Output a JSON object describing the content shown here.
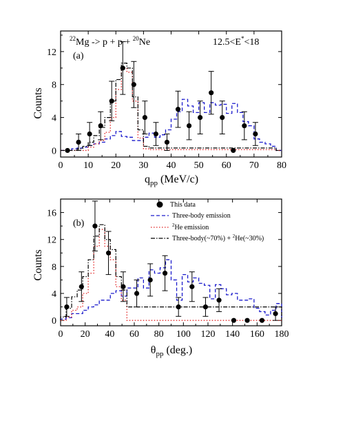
{
  "chart_data": [
    {
      "type": "scatter",
      "panel_label": "(a)",
      "reaction_text": {
        "pre1": "22",
        "t1": "Mg -> p + p + ",
        "pre2": "20",
        "t2": "Ne"
      },
      "energy_text": {
        "t1": "12.5<E",
        "sup": "*",
        "t2": "<18"
      },
      "xlabel": {
        "main": "q",
        "sub": "pp",
        "rest": " (MeV/c)"
      },
      "ylabel": "Counts",
      "xlim": [
        0,
        80
      ],
      "ylim": [
        -0.8,
        14.5
      ],
      "xticks": [
        0,
        10,
        20,
        30,
        40,
        50,
        60,
        70,
        80
      ],
      "yticks": [
        0,
        4,
        8,
        12
      ],
      "points": [
        {
          "x": 2.5,
          "y": 0,
          "err": 0
        },
        {
          "x": 6.5,
          "y": 1,
          "err": 1
        },
        {
          "x": 10.5,
          "y": 2,
          "err": 1.4
        },
        {
          "x": 14.5,
          "y": 3,
          "err": 1.7
        },
        {
          "x": 18.5,
          "y": 6,
          "err": 2.4
        },
        {
          "x": 22.5,
          "y": 10,
          "err": 3.2
        },
        {
          "x": 26.5,
          "y": 8,
          "err": 2.8
        },
        {
          "x": 30.5,
          "y": 4,
          "err": 2.0
        },
        {
          "x": 34.5,
          "y": 2,
          "err": 1.4
        },
        {
          "x": 38.5,
          "y": 1,
          "err": 1
        },
        {
          "x": 42.5,
          "y": 5,
          "err": 2.2
        },
        {
          "x": 46.5,
          "y": 3,
          "err": 1.7
        },
        {
          "x": 50.5,
          "y": 4,
          "err": 2.0
        },
        {
          "x": 54.5,
          "y": 7,
          "err": 2.6
        },
        {
          "x": 58.5,
          "y": 4,
          "err": 2.0
        },
        {
          "x": 62.5,
          "y": 0,
          "err": 0
        },
        {
          "x": 66.5,
          "y": 3,
          "err": 1.7
        },
        {
          "x": 70.5,
          "y": 2,
          "err": 1.4
        }
      ],
      "series": [
        {
          "style": "blue-dash",
          "bin_edges": [
            0,
            2,
            4,
            6,
            8,
            10,
            12,
            14,
            16,
            18,
            20,
            22,
            24,
            26,
            28,
            30,
            32,
            34,
            36,
            38,
            40,
            42,
            44,
            46,
            48,
            50,
            52,
            54,
            56,
            58,
            60,
            62,
            64,
            66,
            68,
            70,
            72,
            74,
            76,
            78,
            80
          ],
          "values": [
            0,
            0,
            0.2,
            0.3,
            0.4,
            0.6,
            0.8,
            1,
            1.4,
            1.8,
            2.3,
            1.7,
            1.6,
            1.2,
            1.2,
            1.6,
            2.1,
            1.6,
            1.9,
            2.5,
            3.8,
            4.7,
            6.2,
            5.4,
            4.6,
            5.8,
            4.6,
            5.8,
            5.5,
            5.6,
            4.5,
            5.7,
            4.6,
            3.5,
            3,
            1.4,
            1,
            0.8,
            0.5,
            0
          ]
        },
        {
          "style": "red-dot",
          "bin_edges": [
            0,
            2,
            4,
            6,
            8,
            10,
            12,
            14,
            16,
            18,
            20,
            22,
            24,
            26,
            28,
            30,
            32,
            34,
            36,
            38,
            40,
            42,
            44,
            46,
            48,
            50,
            52,
            54,
            56,
            58,
            60,
            62,
            64,
            66,
            68,
            70,
            72,
            74,
            76,
            78,
            80
          ],
          "values": [
            0,
            0,
            0,
            0,
            0,
            0.4,
            0.8,
            1.2,
            2.2,
            4,
            7.4,
            10,
            9.5,
            6,
            1.5,
            0.2,
            0.1,
            0.1,
            0.1,
            0.1,
            0.1,
            0.1,
            0.1,
            0.1,
            0.1,
            0.1,
            0.1,
            0.1,
            0.1,
            0.1,
            0.1,
            0.1,
            0.1,
            0.1,
            0.1,
            0.1,
            0.1,
            0.1,
            0.1,
            0
          ]
        },
        {
          "style": "black-dashdot",
          "bin_edges": [
            0,
            2,
            4,
            6,
            8,
            10,
            12,
            14,
            16,
            18,
            20,
            22,
            24,
            26,
            28,
            30,
            32,
            34,
            36,
            38,
            40,
            42,
            44,
            46,
            48,
            50,
            52,
            54,
            56,
            58,
            60,
            62,
            64,
            66,
            68,
            70,
            72,
            74,
            76,
            78,
            80
          ],
          "values": [
            0,
            0,
            0,
            0.2,
            0.5,
            1,
            1.8,
            2.8,
            4,
            6,
            8.6,
            10.6,
            10,
            6.5,
            2.5,
            0.5,
            0.3,
            0.3,
            0.3,
            0.3,
            0.3,
            0.3,
            0.3,
            0.3,
            0.3,
            0.3,
            0.3,
            0.3,
            0.3,
            0.3,
            0.3,
            0.3,
            0.3,
            0.3,
            0.3,
            0.3,
            0.3,
            0.3,
            0.3,
            0
          ]
        }
      ]
    },
    {
      "type": "scatter",
      "panel_label": "(b)",
      "xlabel": {
        "main": "θ",
        "sub": "pp",
        "rest": " (deg.)"
      },
      "ylabel": "Counts",
      "xlim": [
        0,
        180
      ],
      "ylim": [
        -0.8,
        18.0
      ],
      "xticks": [
        0,
        20,
        40,
        60,
        80,
        100,
        120,
        140,
        160,
        180
      ],
      "yticks": [
        0,
        4,
        8,
        12,
        16
      ],
      "legend": {
        "position": "top-right",
        "entries": [
          {
            "text": "This data",
            "marker": "dot"
          },
          {
            "text": "Three-body emission",
            "marker": "blue-dash"
          },
          {
            "sup": "2",
            "text": "He emission",
            "marker": "red-dot"
          },
          {
            "text1": "Three-body(~70%) + ",
            "sup": "2",
            "text2": "He(~30%)",
            "marker": "black-dashdot"
          }
        ]
      },
      "points": [
        {
          "x": 5,
          "y": 2,
          "err": 1.4
        },
        {
          "x": 17,
          "y": 5,
          "err": 2.2
        },
        {
          "x": 28,
          "y": 14,
          "err": 3.7
        },
        {
          "x": 39,
          "y": 10,
          "err": 3.2
        },
        {
          "x": 51,
          "y": 5,
          "err": 2.2
        },
        {
          "x": 62,
          "y": 4,
          "err": 2.0
        },
        {
          "x": 73,
          "y": 6,
          "err": 2.4
        },
        {
          "x": 85,
          "y": 7,
          "err": 2.6
        },
        {
          "x": 96,
          "y": 2,
          "err": 1.4
        },
        {
          "x": 107,
          "y": 5,
          "err": 2.2
        },
        {
          "x": 118,
          "y": 2,
          "err": 1.4
        },
        {
          "x": 129,
          "y": 3,
          "err": 1.7
        },
        {
          "x": 141,
          "y": 0,
          "err": 0
        },
        {
          "x": 152,
          "y": 0,
          "err": 0
        },
        {
          "x": 164,
          "y": 0,
          "err": 0
        },
        {
          "x": 175,
          "y": 1,
          "err": 1
        }
      ],
      "series": [
        {
          "style": "blue-dash",
          "bin_edges": [
            0,
            4.5,
            9,
            13.5,
            18,
            22.5,
            27,
            31.5,
            36,
            40.5,
            45,
            49.5,
            54,
            58.5,
            63,
            67.5,
            72,
            76.5,
            81,
            85.5,
            90,
            94.5,
            99,
            103.5,
            108,
            112.5,
            117,
            121.5,
            126,
            130.5,
            135,
            139.5,
            144,
            148.5,
            153,
            157.5,
            162,
            166.5,
            171,
            175.5,
            180
          ],
          "values": [
            0.2,
            0.4,
            1,
            1,
            1.5,
            2,
            2.3,
            3,
            3,
            4,
            4.4,
            3.6,
            4.8,
            4.8,
            6.3,
            4.8,
            7.5,
            7,
            7.8,
            9,
            6,
            3,
            6.8,
            5.7,
            6.3,
            5.5,
            5.2,
            3.2,
            5.3,
            4.7,
            3.8,
            4,
            3,
            3,
            3.2,
            1.8,
            1.3,
            0.8,
            1.5,
            2.5
          ]
        },
        {
          "style": "red-dot",
          "bin_edges": [
            0,
            4.5,
            9,
            13.5,
            18,
            22.5,
            27,
            31.5,
            36,
            40.5,
            45,
            49.5,
            54,
            58.5,
            63,
            67.5,
            72,
            76.5,
            81,
            85.5,
            90,
            94.5,
            99,
            103.5,
            108,
            112.5,
            117,
            121.5,
            126,
            130.5,
            135,
            139.5,
            144,
            148.5,
            153,
            157.5,
            162,
            166.5,
            171,
            175.5,
            180
          ],
          "values": [
            0,
            0.5,
            1.5,
            2,
            4,
            7,
            11,
            13.5,
            11,
            9,
            5,
            3,
            0,
            0,
            0,
            0,
            0,
            0,
            0,
            0,
            0,
            0,
            0,
            0,
            0,
            0,
            0,
            0,
            0,
            0,
            0,
            0,
            0,
            0,
            0,
            0,
            0,
            0,
            0,
            0
          ]
        },
        {
          "style": "black-dashdot",
          "bin_edges": [
            0,
            4.5,
            9,
            13.5,
            18,
            22.5,
            27,
            31.5,
            36,
            40.5,
            45,
            49.5,
            54,
            58.5,
            63,
            67.5,
            72,
            76.5,
            81,
            85.5,
            90,
            94.5,
            99,
            103.5,
            108,
            112.5,
            117,
            121.5,
            126,
            130.5,
            135,
            139.5,
            144,
            148.5,
            153,
            157.5,
            162,
            166.5,
            171,
            175.5,
            180
          ],
          "values": [
            0.5,
            1.8,
            3.5,
            4.5,
            6.5,
            9,
            12.5,
            14.2,
            12,
            10.5,
            6.5,
            4.5,
            2,
            2,
            2,
            2,
            2,
            2,
            2,
            2,
            2,
            2,
            2,
            2,
            2,
            2,
            2,
            2,
            2,
            2,
            2,
            2,
            2,
            2,
            2,
            2,
            2,
            2,
            2,
            2
          ]
        }
      ]
    }
  ],
  "colors": {
    "blue": "#1a1acc",
    "red": "#e02020",
    "black": "#000000"
  }
}
